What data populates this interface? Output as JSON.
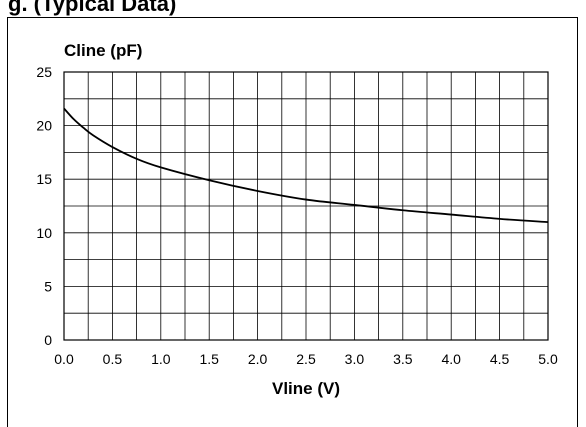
{
  "page": {
    "title_fragment": "g. (Typical Data)"
  },
  "chart_data": {
    "type": "line",
    "title": "",
    "xlabel": "Vline (V)",
    "ylabel": "Cline (pF)",
    "xlim": [
      0,
      5
    ],
    "ylim": [
      0,
      25
    ],
    "x_ticks": [
      0,
      0.5,
      1,
      1.5,
      2,
      2.5,
      3,
      3.5,
      4,
      4.5,
      5
    ],
    "x_tick_labels": [
      "0.0",
      "0.5",
      "1.0",
      "1.5",
      "2.0",
      "2.5",
      "3.0",
      "3.5",
      "4.0",
      "4.5",
      "5.0"
    ],
    "y_ticks": [
      0,
      5,
      10,
      15,
      20,
      25
    ],
    "y_tick_labels": [
      "0",
      "5",
      "10",
      "15",
      "20",
      "25"
    ],
    "grid": true,
    "series": [
      {
        "color": "#000000",
        "x": [
          0,
          0.1,
          0.2,
          0.3,
          0.5,
          0.75,
          1.0,
          1.5,
          2.0,
          2.5,
          3.0,
          3.5,
          4.0,
          4.5,
          5.0
        ],
        "y": [
          21.6,
          20.6,
          19.8,
          19.1,
          18.0,
          16.9,
          16.1,
          14.9,
          13.9,
          13.1,
          12.6,
          12.1,
          11.7,
          11.3,
          11.0
        ]
      }
    ]
  }
}
